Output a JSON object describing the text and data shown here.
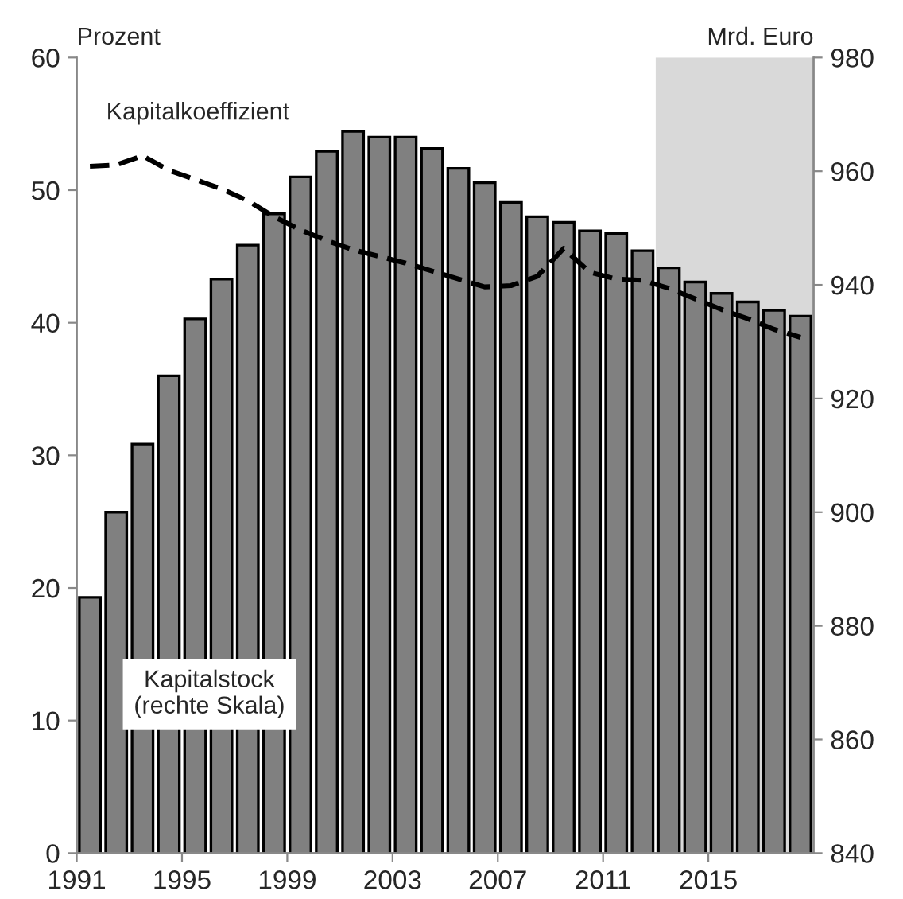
{
  "chart_data": {
    "type": "bar",
    "x": [
      1991.5,
      1992.5,
      1993.5,
      1994.5,
      1995.5,
      1996.5,
      1997.5,
      1998.5,
      1999.5,
      2000.5,
      2001.5,
      2002.5,
      2003.5,
      2004.5,
      2005.5,
      2006.5,
      2007.5,
      2008.5,
      2009.5,
      2010.5,
      2011.5,
      2012.5,
      2013.5,
      2014.5,
      2015.5,
      2016.5,
      2017.5,
      2018.5
    ],
    "series": [
      {
        "name": "Kapitalstock\n(rechte Skala)",
        "axis": "y2",
        "color": "#808080",
        "values": [
          885,
          900,
          912,
          924,
          934,
          941,
          947,
          952.5,
          959,
          963.5,
          967,
          966,
          966,
          964,
          960.5,
          958,
          954.5,
          952,
          951,
          949.5,
          949,
          946,
          943,
          940.5,
          938.5,
          937,
          935.5,
          934.5
        ]
      },
      {
        "name": "Kapitalkoeffizient",
        "type": "line",
        "color": "#000000",
        "line_style": "dashed",
        "values": [
          51.8,
          51.9,
          52.6,
          51.5,
          50.8,
          50.1,
          49.2,
          48.0,
          47.0,
          46.2,
          45.5,
          45.0,
          44.5,
          43.9,
          43.3,
          42.7,
          42.8,
          43.5,
          45.6,
          43.8,
          43.3,
          43.2,
          42.6,
          41.8,
          41.0,
          40.3,
          39.5,
          38.9
        ]
      }
    ],
    "ylabel": "Prozent",
    "y2label": "Mrd. Euro",
    "xlim": [
      1991,
      2019
    ],
    "xticks": [
      1991,
      1995,
      1999,
      2003,
      2007,
      2011,
      2015
    ],
    "ylim": [
      0,
      60
    ],
    "yticks": [
      0,
      10,
      20,
      30,
      40,
      50,
      60
    ],
    "y2lim": [
      840,
      980
    ],
    "y2ticks": [
      840,
      860,
      880,
      900,
      920,
      940,
      960,
      980
    ],
    "bands": [
      {
        "axis": "x",
        "from": 2013,
        "to": 2019,
        "color": "#d9d9d9"
      }
    ],
    "grid": false,
    "legend": false
  }
}
